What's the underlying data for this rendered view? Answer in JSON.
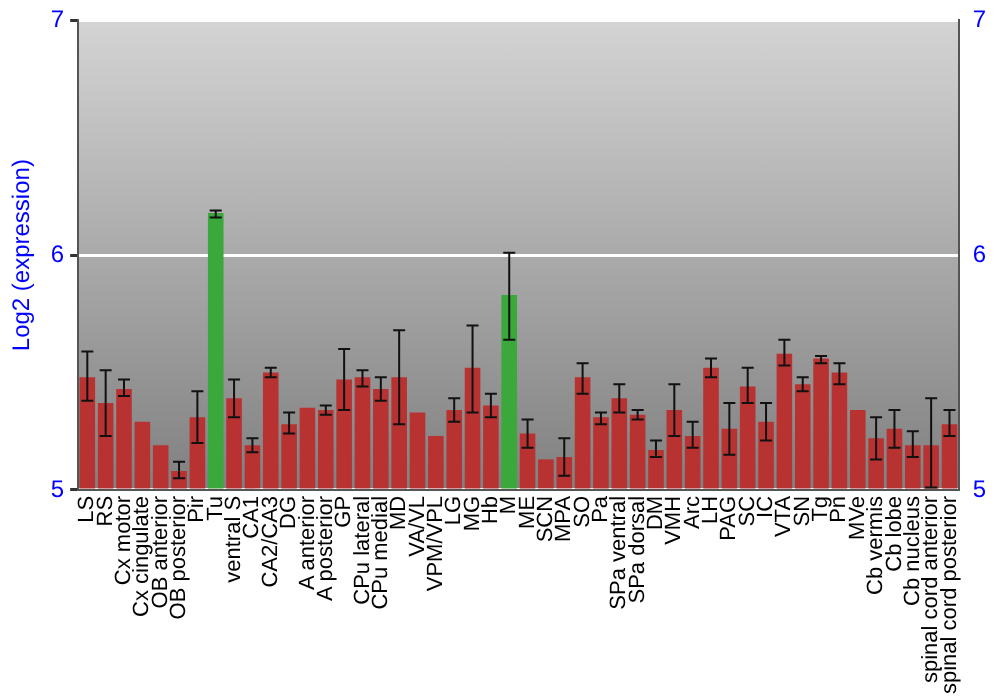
{
  "chart_data": {
    "type": "bar",
    "ylabel": "Log2 (expression)",
    "categories": [
      "LS",
      "RS",
      "Cx motor",
      "Cx cingulate",
      "OB anterior",
      "OB posterior",
      "Pir",
      "Tu",
      "ventral S",
      "CA1",
      "CA2/CA3",
      "DG",
      "A anterior",
      "A posterior",
      "GP",
      "CPu lateral",
      "CPu medial",
      "MD",
      "VA/VL",
      "VPM/VPL",
      "LG",
      "MG",
      "Hb",
      "M",
      "ME",
      "SCN",
      "MPA",
      "SO",
      "Pa",
      "SPa ventral",
      "SPa dorsal",
      "DM",
      "VMH",
      "Arc",
      "LH",
      "PAG",
      "SC",
      "IC",
      "VTA",
      "SN",
      "Tg",
      "Pn",
      "MVe",
      "Cb vermis",
      "Cb lobe",
      "Cb nucleus",
      "spinal cord anterior",
      "spinal cord posterior"
    ],
    "values": [
      5.48,
      5.37,
      5.43,
      5.29,
      5.19,
      5.08,
      5.31,
      6.18,
      5.39,
      5.19,
      5.5,
      5.28,
      5.35,
      5.34,
      5.47,
      5.48,
      5.43,
      5.48,
      5.33,
      5.23,
      5.34,
      5.52,
      5.36,
      5.83,
      5.24,
      5.13,
      5.14,
      5.48,
      5.31,
      5.39,
      5.32,
      5.17,
      5.34,
      5.23,
      5.52,
      5.26,
      5.44,
      5.29,
      5.58,
      5.45,
      5.56,
      5.5,
      5.34,
      5.22,
      5.26,
      5.19,
      5.19,
      5.28
    ],
    "errors": [
      [
        5.38,
        5.59
      ],
      [
        5.23,
        5.51
      ],
      [
        5.4,
        5.47
      ],
      null,
      null,
      [
        5.05,
        5.12
      ],
      [
        5.2,
        5.42
      ],
      [
        6.16,
        6.19
      ],
      [
        5.31,
        5.47
      ],
      [
        5.16,
        5.22
      ],
      [
        5.48,
        5.52
      ],
      [
        5.24,
        5.33
      ],
      null,
      [
        5.32,
        5.36
      ],
      [
        5.34,
        5.6
      ],
      [
        5.44,
        5.51
      ],
      [
        5.38,
        5.48
      ],
      [
        5.28,
        5.68
      ],
      null,
      null,
      [
        5.29,
        5.39
      ],
      [
        5.33,
        5.7
      ],
      [
        5.31,
        5.41
      ],
      [
        5.64,
        6.01
      ],
      [
        5.18,
        5.3
      ],
      null,
      [
        5.06,
        5.22
      ],
      [
        5.41,
        5.54
      ],
      [
        5.28,
        5.33
      ],
      [
        5.33,
        5.45
      ],
      [
        5.3,
        5.34
      ],
      [
        5.14,
        5.21
      ],
      [
        5.23,
        5.45
      ],
      [
        5.18,
        5.29
      ],
      [
        5.48,
        5.56
      ],
      [
        5.15,
        5.37
      ],
      [
        5.37,
        5.52
      ],
      [
        5.21,
        5.37
      ],
      [
        5.53,
        5.64
      ],
      [
        5.42,
        5.48
      ],
      [
        5.54,
        5.57
      ],
      [
        5.45,
        5.54
      ],
      null,
      [
        5.13,
        5.31
      ],
      [
        5.18,
        5.34
      ],
      [
        5.14,
        5.25
      ],
      [
        5.01,
        5.39
      ],
      [
        5.23,
        5.34
      ]
    ],
    "colors": [
      "#b83232",
      "#b83232",
      "#b83232",
      "#b83232",
      "#b83232",
      "#b83232",
      "#b83232",
      "#3aa83a",
      "#b83232",
      "#b83232",
      "#b83232",
      "#b83232",
      "#b83232",
      "#b83232",
      "#b83232",
      "#b83232",
      "#b83232",
      "#b83232",
      "#b83232",
      "#b83232",
      "#b83232",
      "#b83232",
      "#b83232",
      "#3aa83a",
      "#b83232",
      "#b83232",
      "#b83232",
      "#b83232",
      "#b83232",
      "#b83232",
      "#b83232",
      "#b83232",
      "#b83232",
      "#b83232",
      "#b83232",
      "#b83232",
      "#b83232",
      "#b83232",
      "#b83232",
      "#b83232",
      "#b83232",
      "#b83232",
      "#b83232",
      "#b83232",
      "#b83232",
      "#b83232",
      "#b83232",
      "#b83232"
    ],
    "ylim": [
      5,
      7
    ],
    "yticks": [
      5,
      6,
      7
    ],
    "y2lim": [
      5,
      7
    ],
    "y2ticks": [
      5,
      6,
      7
    ],
    "grid": "y"
  }
}
